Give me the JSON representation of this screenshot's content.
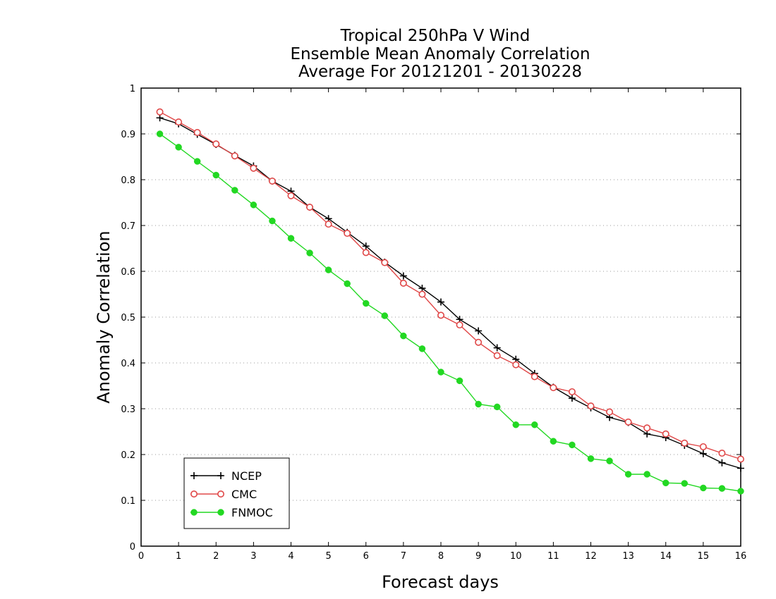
{
  "chart_data": {
    "type": "line",
    "title": [
      "Tropical 250hPa V Wind",
      "Ensemble Mean Anomaly Correlation",
      "Average For 20121201 - 20130228"
    ],
    "xlabel": "Forecast days",
    "ylabel": "Anomaly Correlation",
    "xlim": [
      0,
      16
    ],
    "ylim": [
      0,
      1
    ],
    "xticks": [
      "0",
      "1",
      "2",
      "3",
      "4",
      "5",
      "6",
      "7",
      "8",
      "9",
      "10",
      "11",
      "12",
      "13",
      "14",
      "15",
      "16"
    ],
    "yticks": [
      "0",
      "0.1",
      "0.2",
      "0.3",
      "0.4",
      "0.5",
      "0.6",
      "0.7",
      "0.8",
      "0.9",
      "1"
    ],
    "grid": "horizontal-dotted",
    "legend_position": "bottom-left",
    "x": [
      0.5,
      1,
      1.5,
      2,
      2.5,
      3,
      3.5,
      4,
      4.5,
      5,
      5.5,
      6,
      6.5,
      7,
      7.5,
      8,
      8.5,
      9,
      9.5,
      10,
      10.5,
      11,
      11.5,
      12,
      12.5,
      13,
      13.5,
      14,
      14.5,
      15,
      15.5,
      16
    ],
    "series": [
      {
        "name": "NCEP",
        "color": "#000000",
        "marker": "plus",
        "values": [
          0.935,
          0.922,
          0.899,
          0.877,
          0.853,
          0.83,
          0.797,
          0.775,
          0.74,
          0.715,
          0.685,
          0.655,
          0.62,
          0.59,
          0.563,
          0.533,
          0.495,
          0.47,
          0.433,
          0.408,
          0.377,
          0.347,
          0.323,
          0.302,
          0.281,
          0.27,
          0.245,
          0.237,
          0.22,
          0.202,
          0.182,
          0.17
        ]
      },
      {
        "name": "CMC",
        "color": "#e04848",
        "marker": "circle-open",
        "values": [
          0.948,
          0.926,
          0.903,
          0.878,
          0.852,
          0.825,
          0.797,
          0.765,
          0.74,
          0.703,
          0.683,
          0.641,
          0.619,
          0.574,
          0.55,
          0.504,
          0.483,
          0.445,
          0.416,
          0.396,
          0.37,
          0.346,
          0.337,
          0.306,
          0.293,
          0.271,
          0.258,
          0.245,
          0.225,
          0.217,
          0.203,
          0.19
        ]
      },
      {
        "name": "FNMOC",
        "color": "#22d822",
        "marker": "circle-filled",
        "values": [
          0.9,
          0.871,
          0.84,
          0.81,
          0.777,
          0.745,
          0.71,
          0.672,
          0.64,
          0.603,
          0.573,
          0.53,
          0.503,
          0.459,
          0.431,
          0.38,
          0.361,
          0.31,
          0.304,
          0.265,
          0.265,
          0.229,
          0.221,
          0.191,
          0.186,
          0.157,
          0.157,
          0.138,
          0.137,
          0.127,
          0.126,
          0.12
        ]
      }
    ]
  }
}
